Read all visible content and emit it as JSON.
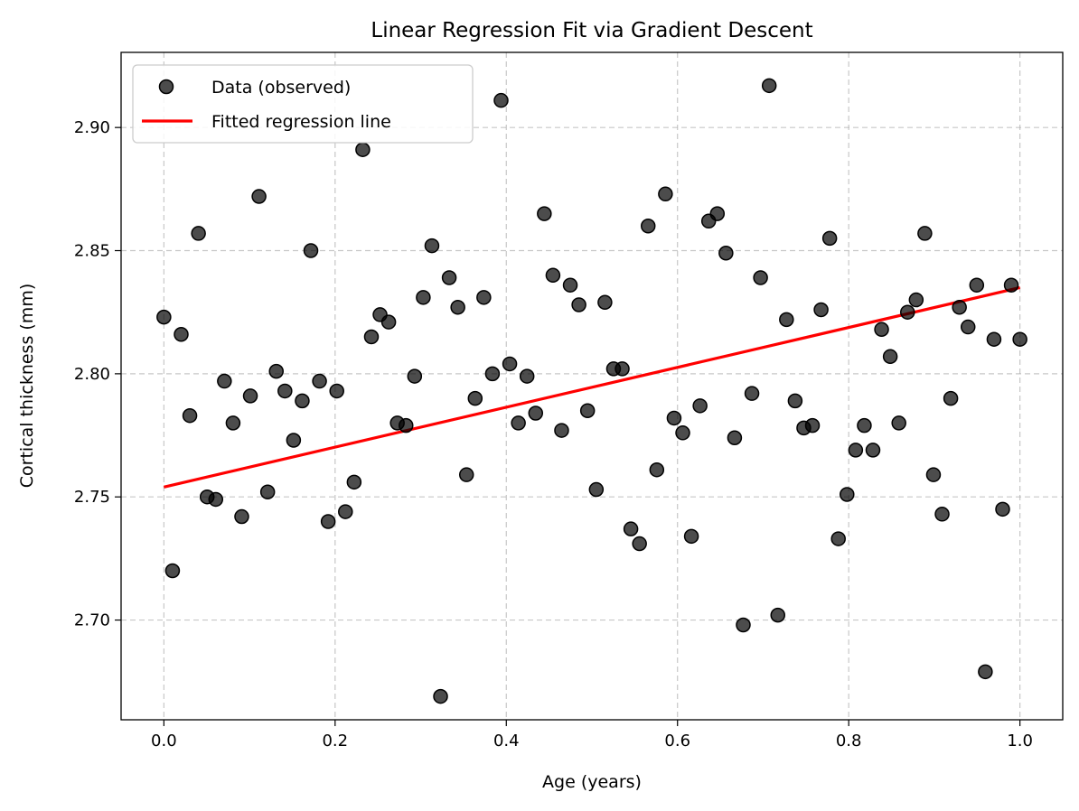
{
  "chart_data": {
    "type": "scatter",
    "title": "Linear Regression Fit via Gradient Descent",
    "xlabel": "Age (years)",
    "ylabel": "Cortical thickness (mm)",
    "xlim": [
      -0.05,
      1.05
    ],
    "ylim": [
      2.6595,
      2.9305
    ],
    "xticks": [
      0.0,
      0.2,
      0.4,
      0.6,
      0.8,
      1.0
    ],
    "xtick_labels": [
      "0.0",
      "0.2",
      "0.4",
      "0.6",
      "0.8",
      "1.0"
    ],
    "yticks": [
      2.7,
      2.75,
      2.8,
      2.85,
      2.9
    ],
    "ytick_labels": [
      "2.70",
      "2.75",
      "2.80",
      "2.85",
      "2.90"
    ],
    "grid": true,
    "legend_position": "top-left",
    "series": [
      {
        "name": "Data (observed)",
        "kind": "scatter",
        "color": "#000000",
        "opacity": 0.7,
        "x": [
          0.0,
          0.0101,
          0.0202,
          0.0303,
          0.0404,
          0.0505,
          0.0606,
          0.0707,
          0.0808,
          0.0909,
          0.101,
          0.1111,
          0.1212,
          0.1313,
          0.1414,
          0.1515,
          0.1616,
          0.1717,
          0.1818,
          0.1919,
          0.202,
          0.2121,
          0.2222,
          0.2323,
          0.2424,
          0.2525,
          0.2626,
          0.2727,
          0.2828,
          0.2929,
          0.303,
          0.3131,
          0.3232,
          0.3333,
          0.3434,
          0.3535,
          0.3636,
          0.3737,
          0.3838,
          0.3939,
          0.404,
          0.4141,
          0.4242,
          0.4343,
          0.4444,
          0.4545,
          0.4646,
          0.4747,
          0.4848,
          0.4949,
          0.5051,
          0.5152,
          0.5253,
          0.5354,
          0.5455,
          0.5556,
          0.5657,
          0.5758,
          0.5859,
          0.596,
          0.6061,
          0.6162,
          0.6263,
          0.6364,
          0.6465,
          0.6566,
          0.6667,
          0.6768,
          0.6869,
          0.697,
          0.7071,
          0.7172,
          0.7273,
          0.7374,
          0.7475,
          0.7576,
          0.7677,
          0.7778,
          0.7879,
          0.798,
          0.8081,
          0.8182,
          0.8283,
          0.8384,
          0.8485,
          0.8586,
          0.8687,
          0.8788,
          0.8889,
          0.899,
          0.9091,
          0.9192,
          0.9293,
          0.9394,
          0.9495,
          0.9596,
          0.9697,
          0.9798,
          0.9899,
          1.0
        ],
        "y": [
          2.823,
          2.72,
          2.816,
          2.783,
          2.857,
          2.75,
          2.749,
          2.797,
          2.78,
          2.742,
          2.791,
          2.872,
          2.752,
          2.801,
          2.793,
          2.773,
          2.789,
          2.85,
          2.797,
          2.74,
          2.793,
          2.744,
          2.756,
          2.891,
          2.815,
          2.824,
          2.821,
          2.78,
          2.779,
          2.799,
          2.831,
          2.852,
          2.669,
          2.839,
          2.827,
          2.759,
          2.79,
          2.831,
          2.8,
          2.911,
          2.804,
          2.78,
          2.799,
          2.784,
          2.865,
          2.84,
          2.777,
          2.836,
          2.828,
          2.785,
          2.753,
          2.829,
          2.802,
          2.802,
          2.737,
          2.731,
          2.86,
          2.761,
          2.873,
          2.782,
          2.776,
          2.734,
          2.787,
          2.862,
          2.865,
          2.849,
          2.774,
          2.698,
          2.792,
          2.839,
          2.917,
          2.702,
          2.822,
          2.789,
          2.778,
          2.779,
          2.826,
          2.855,
          2.733,
          2.751,
          2.769,
          2.779,
          2.769,
          2.818,
          2.807,
          2.78,
          2.825,
          2.83,
          2.857,
          2.759,
          2.743,
          2.79,
          2.827,
          2.819,
          2.836,
          2.679,
          2.814,
          2.745,
          2.836,
          2.814
        ]
      },
      {
        "name": "Fitted regression line",
        "kind": "line",
        "color": "#ff0000",
        "x": [
          0.0,
          1.0
        ],
        "y": [
          2.754,
          2.835
        ]
      }
    ]
  }
}
